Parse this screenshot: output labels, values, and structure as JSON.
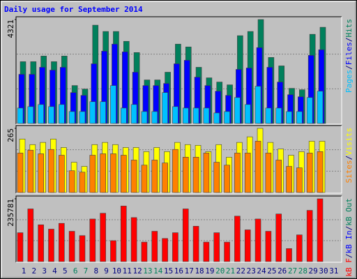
{
  "title": "Daily usage for September 2014",
  "legend_separator": "/",
  "chart_data": [
    {
      "type": "bar",
      "ylim": [
        0,
        4321
      ],
      "yticks": [
        4321
      ],
      "series": [
        {
          "name": "Pages",
          "color": "#00c0ff",
          "values": [
            642,
            701,
            788,
            701,
            788,
            496,
            496,
            905,
            905,
            1577,
            642,
            788,
            496,
            496,
            1285,
            701,
            642,
            642,
            642,
            438,
            496,
            1080,
            788,
            1548,
            642,
            642,
            496,
            496,
            1080,
            1343,
            null
          ]
        },
        {
          "name": "Files",
          "color": "#0000ff",
          "values": [
            2044,
            2044,
            2336,
            2219,
            2336,
            1285,
            1168,
            2482,
            3008,
            3300,
            2978,
            2132,
            1577,
            1577,
            1664,
            2482,
            2628,
            1927,
            1577,
            1343,
            1168,
            2248,
            2307,
            3154,
            2336,
            1723,
            1197,
            1110,
            2832,
            3066,
            null
          ]
        },
        {
          "name": "Hits",
          "color": "#00805c",
          "values": [
            2569,
            2569,
            2803,
            2569,
            2803,
            1577,
            1431,
            4087,
            3825,
            3825,
            3416,
            2949,
            1810,
            1810,
            2131,
            3299,
            3182,
            2336,
            1898,
            1723,
            1606,
            3650,
            3825,
            4321,
            2745,
            2394,
            1460,
            1401,
            3708,
            4000,
            null
          ]
        }
      ]
    },
    {
      "type": "bar",
      "ylim": [
        0,
        265
      ],
      "yticks": [
        265
      ],
      "series": [
        {
          "name": "Sites",
          "color": "#ff8000",
          "values": [
            163,
            175,
            160,
            178,
            154,
            90,
            84,
            154,
            160,
            160,
            154,
            134,
            113,
            134,
            122,
            178,
            146,
            146,
            163,
            125,
            113,
            163,
            163,
            212,
            163,
            134,
            108,
            102,
            163,
            169,
            null
          ]
        },
        {
          "name": "Visits",
          "color": "#ffff00",
          "values": [
            221,
            198,
            207,
            221,
            186,
            125,
            108,
            198,
            207,
            198,
            186,
            186,
            169,
            186,
            169,
            207,
            198,
            195,
            169,
            198,
            146,
            207,
            230,
            265,
            207,
            180,
            154,
            169,
            212,
            212,
            null
          ]
        }
      ]
    },
    {
      "type": "bar",
      "ylim": [
        0,
        235781
      ],
      "yticks": [
        235781
      ],
      "categories": [
        "1",
        "2",
        "3",
        "4",
        "5",
        "6",
        "7",
        "8",
        "9",
        "10",
        "11",
        "12",
        "13",
        "14",
        "15",
        "16",
        "17",
        "18",
        "19",
        "20",
        "21",
        "22",
        "23",
        "24",
        "25",
        "26",
        "27",
        "28",
        "29",
        "30",
        "31"
      ],
      "category_colors": [
        "#000080",
        "#000080",
        "#000080",
        "#000080",
        "#000080",
        "#00805c",
        "#00805c",
        "#000080",
        "#000080",
        "#000080",
        "#000080",
        "#000080",
        "#00805c",
        "#00805c",
        "#000080",
        "#000080",
        "#000080",
        "#000080",
        "#000080",
        "#00805c",
        "#00805c",
        "#000080",
        "#000080",
        "#000080",
        "#000080",
        "#000080",
        "#00805c",
        "#00805c",
        "#000080",
        "#000080",
        "#000080"
      ],
      "series": [
        {
          "name": "kB F",
          "color": "#ff0000",
          "values": [
            108400,
            197830,
            138210,
            121950,
            143630,
            113820,
            97560,
            159890,
            181570,
            78590,
            208670,
            165310,
            73170,
            113820,
            86720,
            108400,
            197830,
            132790,
            73170,
            108400,
            73170,
            170730,
            119240,
            159890,
            113820,
            178860,
            48780,
            100270,
            192410,
            235781,
            null
          ]
        },
        {
          "name": "kB In",
          "color": "#0000ff"
        },
        {
          "name": "kB Out",
          "color": "#00805c"
        }
      ]
    }
  ]
}
